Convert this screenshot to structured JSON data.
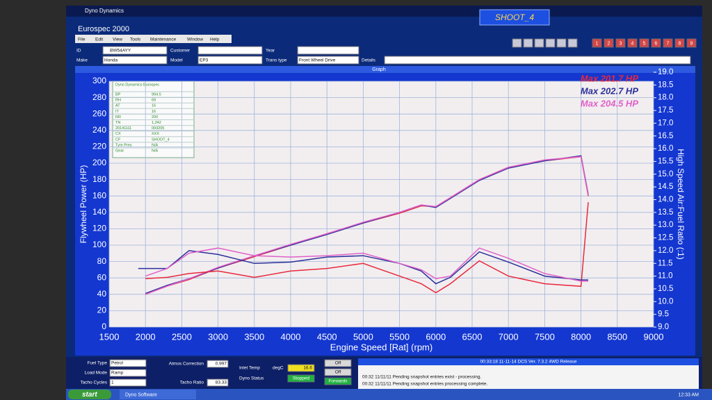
{
  "window": {
    "app": "Dyno Dynamics",
    "title": "Eurospec 2000",
    "run": "SHOOT_4",
    "menu": [
      "File",
      "Edit",
      "View",
      "Tools",
      "Maintenance",
      "Window",
      "Help"
    ],
    "buttons": [
      "1",
      "2",
      "3",
      "4",
      "5",
      "6",
      "7",
      "8",
      "9"
    ]
  },
  "vehicle": {
    "id_label": "ID",
    "id": "BW54AYY",
    "customer_label": "Customer",
    "year_label": "Year",
    "make_label": "Make",
    "make": "Honda",
    "model_label": "Model",
    "model": "EP3",
    "trans_label": "Trans type",
    "trans": "Front Wheel Drive",
    "details_label": "Details"
  },
  "graph_title": "Graph",
  "info_table": {
    "heading": "Dyno Dynamics Eurospec",
    "rows": [
      [
        "BP",
        "994.5"
      ],
      [
        "RH",
        "69"
      ],
      [
        "AT",
        "16"
      ],
      [
        "IT",
        "16"
      ],
      [
        "RR",
        "200"
      ],
      [
        "TN",
        "1,242"
      ],
      [
        "20141111",
        "093205"
      ],
      [
        "CX",
        "XXX"
      ],
      [
        "CF",
        "SHOOT_4"
      ],
      [
        "Tyre Pres",
        "N/A"
      ],
      [
        "Gear",
        "N/A"
      ]
    ]
  },
  "chart_data": {
    "type": "line",
    "x_label": "Engine Speed [Rat] (rpm)",
    "y_label": "Flywheel Power (HP)",
    "y2_label": "High Speed Air:Fuel Ratio (:1)",
    "xlim": [
      1500,
      9000
    ],
    "xticks": [
      1500,
      2000,
      2500,
      3000,
      3500,
      4000,
      4500,
      5000,
      5500,
      6000,
      6500,
      7000,
      7500,
      8000,
      8500,
      9000
    ],
    "ylim": [
      0,
      300
    ],
    "yticks": [
      0,
      20,
      40,
      60,
      80,
      100,
      120,
      140,
      160,
      180,
      200,
      220,
      240,
      260,
      280,
      300
    ],
    "y2lim": [
      9,
      19
    ],
    "y2ticks": [
      {
        "value": 9,
        "label": "9.0"
      },
      9.5,
      {
        "value": 10,
        "label": "10.0"
      },
      10.5,
      {
        "value": 11,
        "label": "11.0"
      },
      11.5,
      {
        "value": 12,
        "label": "12.0"
      },
      12.5,
      {
        "value": 13,
        "label": "13.0"
      },
      13.5,
      {
        "value": 14,
        "label": "14.0"
      },
      14.5,
      {
        "value": 15,
        "label": "15.0"
      },
      15.5,
      {
        "value": 16,
        "label": "16.0"
      },
      16.5,
      {
        "value": 17,
        "label": "17.0"
      },
      17.5,
      {
        "value": 18,
        "label": "18.0"
      },
      18.5,
      {
        "value": 19,
        "label": "19.0"
      }
    ],
    "grid": true,
    "legend": "upper right",
    "x": [
      1900,
      2000,
      2300,
      2600,
      3000,
      3500,
      4000,
      4500,
      5000,
      5500,
      5800,
      6000,
      6200,
      6600,
      7000,
      7500,
      8000,
      8100
    ],
    "series": [
      {
        "name": "Max 201.7 HP",
        "color": "#e8283c",
        "values": [
          null,
          40,
          50,
          58,
          72,
          86,
          100,
          114,
          127,
          139,
          148,
          147,
          158,
          180,
          195,
          203,
          208,
          160
        ]
      },
      {
        "name": "Max 202.7 HP",
        "color": "#2a2f9a",
        "values": [
          null,
          41,
          51,
          59,
          72,
          87,
          100,
          113,
          127,
          140,
          149,
          146,
          157,
          179,
          194,
          203,
          209,
          162
        ]
      },
      {
        "name": "Max 204.5 HP",
        "color": "#e060c8",
        "values": [
          null,
          40,
          50,
          59,
          73,
          87,
          101,
          114,
          128,
          140,
          149,
          147,
          158,
          180,
          195,
          204,
          208,
          161
        ]
      },
      {
        "color": "#e8283c",
        "axis": "y2",
        "values": [
          null,
          10.9,
          10.95,
          11.1,
          11.2,
          10.95,
          11.2,
          11.3,
          11.5,
          11.0,
          10.7,
          10.35,
          10.7,
          11.6,
          11.0,
          10.7,
          10.6,
          13.9
        ]
      },
      {
        "color": "#2a2f9a",
        "axis": "y2",
        "values": [
          11.3,
          11.3,
          11.3,
          12.0,
          11.85,
          11.5,
          11.55,
          11.75,
          11.8,
          11.5,
          11.2,
          10.7,
          10.95,
          11.95,
          11.55,
          11.0,
          10.85,
          10.85
        ]
      },
      {
        "color": "#e060c8",
        "axis": "y2",
        "values": [
          null,
          11.0,
          11.3,
          11.9,
          12.1,
          11.8,
          11.75,
          11.8,
          11.9,
          11.5,
          11.25,
          10.9,
          11.0,
          12.1,
          11.7,
          11.1,
          10.8,
          10.8
        ]
      }
    ]
  },
  "controls": {
    "fuel_label": "Fuel Type",
    "fuel": "Petrol",
    "load_label": "Load Mode",
    "load": "Ramp",
    "tacho_cycles_label": "Tacho Cycles",
    "tacho_cycles": "1",
    "atmos_label": "Atmos Correction",
    "atmos": "0.997",
    "tacho_ratio_label": "Tacho Ratio",
    "tacho_ratio": "83.33",
    "inlet_label": "Inlet Temp",
    "inlet_unit": "degC",
    "inlet": "16.6",
    "dyno_status_label": "Dyno Status",
    "dyno_status": "Stopped",
    "switches": [
      "Off",
      "Off",
      "Forwards"
    ]
  },
  "status": {
    "header": "00:33:18   11-11-14  DCS Ver. 7.3.2 4WD Release",
    "log": [
      "00:32 11/11/11 Pending snapshot entries exist - processing.",
      "00:32 11/11/11 Pending snapshot entries processing complete."
    ]
  },
  "taskbar": {
    "start": "start",
    "app": "Dyno Software",
    "clock": "12:33 AM"
  }
}
